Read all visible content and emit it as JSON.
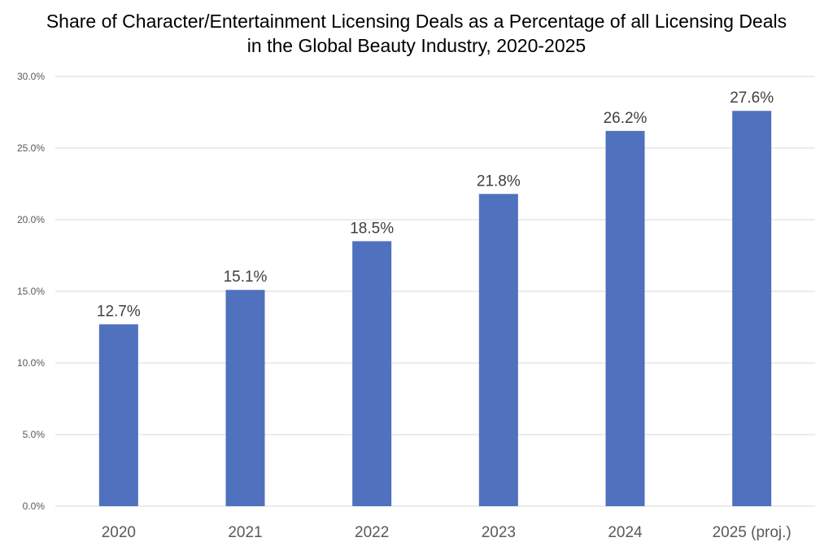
{
  "chart_data": {
    "type": "bar",
    "title_lines": [
      "Share of Character/Entertainment Licensing Deals as a Percentage of all Licensing Deals",
      "in the Global Beauty Industry, 2020-2025"
    ],
    "categories": [
      "2020",
      "2021",
      "2022",
      "2023",
      "2024",
      "2025 (proj.)"
    ],
    "values": [
      12.7,
      15.1,
      18.5,
      21.8,
      26.2,
      27.6
    ],
    "data_labels": [
      "12.7%",
      "15.1%",
      "18.5%",
      "21.8%",
      "26.2%",
      "27.6%"
    ],
    "y_ticks": [
      "0.0%",
      "5.0%",
      "10.0%",
      "15.0%",
      "20.0%",
      "25.0%",
      "30.0%"
    ],
    "ylim": [
      0,
      30
    ],
    "xlabel": "",
    "ylabel": "",
    "grid": true,
    "legend": "none",
    "colors": {
      "bar": "#4F71BE",
      "grid": "#D9D9D9"
    }
  }
}
